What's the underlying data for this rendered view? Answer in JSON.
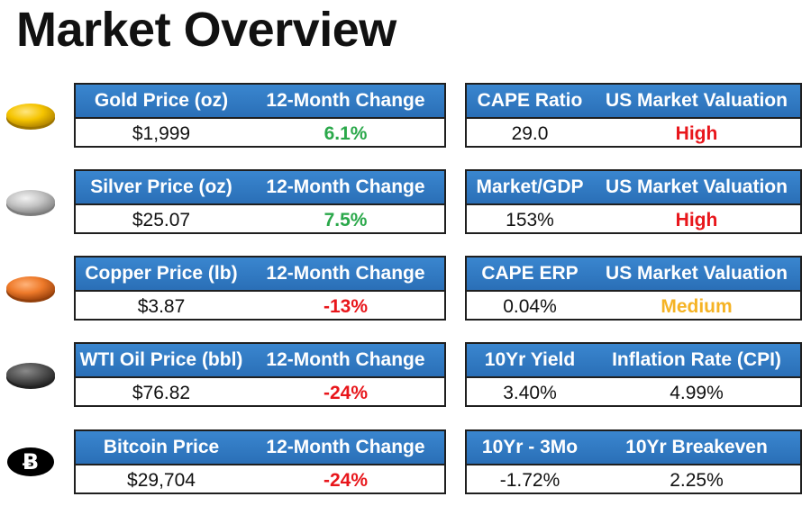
{
  "title": "Market Overview",
  "colors": {
    "header_blue": "#2f7bc4",
    "positive": "#2aa84a",
    "negative": "#e8161b",
    "medium": "#f5b324"
  },
  "rows": [
    {
      "icon": "gold-coin-icon",
      "left": {
        "h1": "Gold Price (oz)",
        "h2": "12-Month Change",
        "v1": "$1,999",
        "v2": "6.1%"
      },
      "right": {
        "h1": "CAPE Ratio",
        "h2": "US Market Valuation",
        "v1": "29.0",
        "v2": "High"
      }
    },
    {
      "icon": "silver-coin-icon",
      "left": {
        "h1": "Silver Price (oz)",
        "h2": "12-Month Change",
        "v1": "$25.07",
        "v2": "7.5%"
      },
      "right": {
        "h1": "Market/GDP",
        "h2": "US Market Valuation",
        "v1": "153%",
        "v2": "High"
      }
    },
    {
      "icon": "copper-coin-icon",
      "left": {
        "h1": "Copper Price (lb)",
        "h2": "12-Month Change",
        "v1": "$3.87",
        "v2": "-13%"
      },
      "right": {
        "h1": "CAPE ERP",
        "h2": "US Market Valuation",
        "v1": "0.04%",
        "v2": "Medium"
      }
    },
    {
      "icon": "oil-coin-icon",
      "left": {
        "h1": "WTI Oil Price (bbl)",
        "h2": "12-Month Change",
        "v1": "$76.82",
        "v2": "-24%"
      },
      "right": {
        "h1": "10Yr Yield",
        "h2": "Inflation Rate (CPI)",
        "v1": "3.40%",
        "v2": "4.99%"
      }
    },
    {
      "icon": "bitcoin-icon",
      "left": {
        "h1": "Bitcoin Price",
        "h2": "12-Month Change",
        "v1": "$29,704",
        "v2": "-24%"
      },
      "right": {
        "h1": "10Yr - 3Mo",
        "h2": "10Yr Breakeven",
        "v1": "-1.72%",
        "v2": "2.25%"
      }
    }
  ]
}
